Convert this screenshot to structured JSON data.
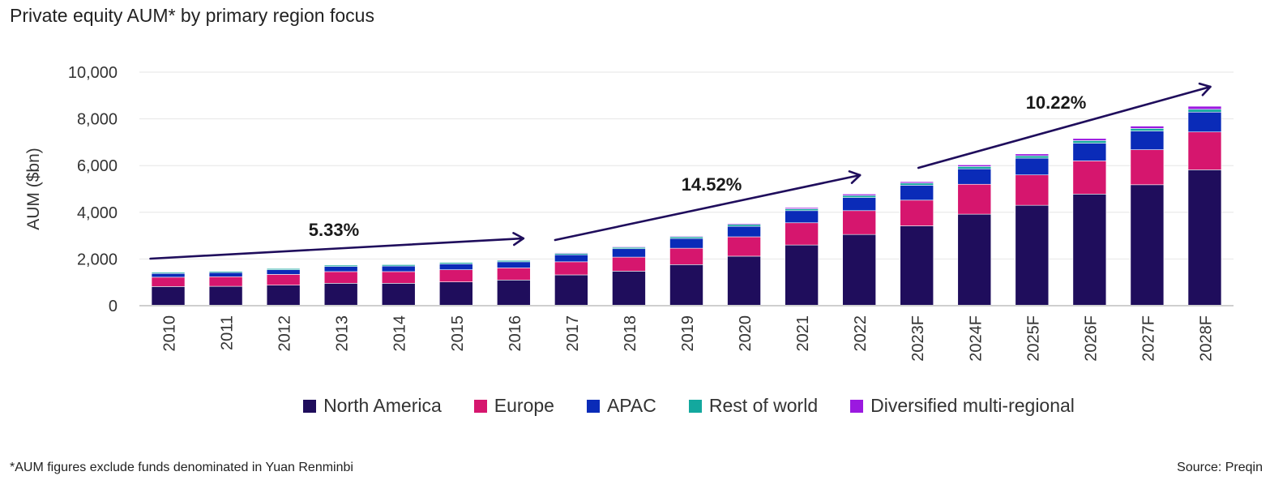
{
  "title": "Private equity AUM* by primary region focus",
  "footnote": "*AUM figures exclude funds denominated in Yuan Renminbi",
  "source": "Source: Preqin",
  "chart_data": {
    "type": "bar",
    "stacked": true,
    "categories": [
      "2010",
      "2011",
      "2012",
      "2013",
      "2014",
      "2015",
      "2016",
      "2017",
      "2018",
      "2019",
      "2020",
      "2021",
      "2022",
      "2023F",
      "2024F",
      "2025F",
      "2026F",
      "2027F",
      "2028F"
    ],
    "ylabel": "AUM ($bn)",
    "xlabel": "",
    "ylim": [
      0,
      10000
    ],
    "yticks": [
      0,
      2000,
      4000,
      6000,
      8000,
      10000
    ],
    "ytick_labels": [
      "0",
      "2,000",
      "4,000",
      "6,000",
      "8,000",
      "10,000"
    ],
    "grid": true,
    "legend_position": "bottom",
    "series": [
      {
        "name": "North America",
        "color": "#1f0d5c",
        "values": [
          820,
          830,
          880,
          960,
          960,
          1020,
          1100,
          1320,
          1480,
          1760,
          2120,
          2600,
          3050,
          3420,
          3920,
          4300,
          4780,
          5180,
          5820
        ]
      },
      {
        "name": "Europe",
        "color": "#d6166e",
        "values": [
          400,
          410,
          460,
          500,
          500,
          520,
          520,
          560,
          600,
          700,
          830,
          950,
          1020,
          1100,
          1280,
          1300,
          1420,
          1500,
          1620
        ]
      },
      {
        "name": "APAC",
        "color": "#0a2bb8",
        "values": [
          160,
          180,
          200,
          220,
          240,
          250,
          260,
          300,
          360,
          420,
          450,
          520,
          560,
          640,
          660,
          720,
          760,
          800,
          850
        ]
      },
      {
        "name": "Rest of world",
        "color": "#13a89e",
        "values": [
          50,
          50,
          50,
          60,
          60,
          60,
          60,
          60,
          60,
          70,
          80,
          80,
          90,
          90,
          100,
          100,
          110,
          110,
          120
        ]
      },
      {
        "name": "Diversified multi-regional",
        "color": "#9b19e0",
        "values": [
          20,
          20,
          20,
          20,
          20,
          20,
          20,
          30,
          30,
          30,
          40,
          50,
          60,
          60,
          70,
          80,
          90,
          100,
          130
        ]
      }
    ],
    "annotations": [
      {
        "label": "5.33%",
        "from": "2010",
        "to": "2016"
      },
      {
        "label": "14.52%",
        "from": "2017",
        "to": "2022"
      },
      {
        "label": "10.22%",
        "from": "2023F",
        "to": "2028F"
      }
    ]
  }
}
